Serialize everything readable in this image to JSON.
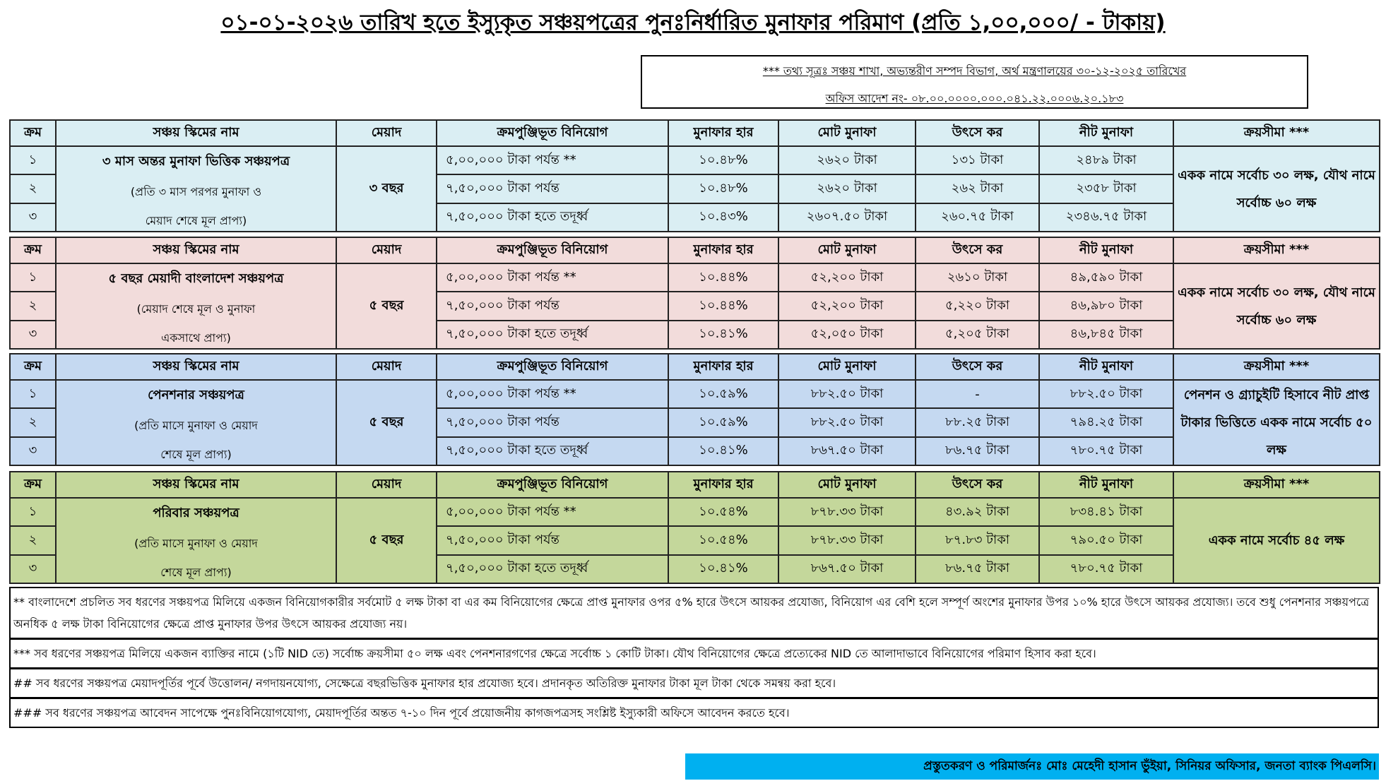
{
  "title": "০১-০১-২০২৬ তারিখ হতে ইস্যুকৃত সঞ্চয়পত্রের পুনঃনির্ধারিত মুনাফার পরিমাণ (প্রতি ১,০০,০০০/ - টাকায়)",
  "source": {
    "line1": "*** তথ্য সূত্রঃ সঞ্চয় শাখা, অভ্যন্তরীণ সম্পদ বিভাগ, অর্থ মন্ত্রণালয়ের ৩০-১২-২০২৫ তারিখের",
    "line2": "অফিস আদেশ নং- ০৮.০০.০০০০.০০০.০৪১.২২.০০০৬.২০.১৮৩"
  },
  "headers": [
    "ক্রম",
    "সঞ্চয় স্কিমের নাম",
    "মেয়াদ",
    "ক্রমপুঞ্জিভূত বিনিয়োগ",
    "মুনাফার হার",
    "মোট মুনাফা",
    "উৎসে কর",
    "নীট মুনাফা",
    "ক্রয়সীমা ***"
  ],
  "schemes": [
    {
      "color": "#DAEEF3",
      "name": [
        "৩ মাস অন্তর মুনাফা ভিত্তিক সঞ্চয়পত্র",
        "(প্রতি ৩ মাস পরপর মুনাফা ও",
        "মেয়াদ শেষে মূল প্রাপ্য)"
      ],
      "term": "৩ বছর",
      "limit": "একক নামে সর্বোচ ৩০ লক্ষ, যৌথ নামে সর্বোচ্চ ৬০ লক্ষ",
      "rows": [
        [
          "১",
          "৫,০০,০০০ টাকা পর্যন্ত **",
          "১০.৪৮%",
          "২৬২০ টাকা",
          "১৩১ টাকা",
          "২৪৮৯ টাকা"
        ],
        [
          "২",
          "৭,৫০,০০০ টাকা পর্যন্ত",
          "১০.৪৮%",
          "২৬২০ টাকা",
          "২৬২ টাকা",
          "২৩৫৮ টাকা"
        ],
        [
          "৩",
          "৭,৫০,০০০ টাকা হতে তদূর্ধ্ব",
          "১০.৪৩%",
          "২৬০৭.৫০ টাকা",
          "২৬০.৭৫ টাকা",
          "২৩৪৬.৭৫ টাকা"
        ]
      ]
    },
    {
      "color": "#F2DCDB",
      "name": [
        "৫ বছর মেয়াদী বাংলাদেশ সঞ্চয়পত্র",
        "(মেয়াদ শেষে মূল ও মুনাফা",
        "একসাথে প্রাপ্য)"
      ],
      "term": "৫ বছর",
      "limit": "একক নামে সর্বোচ ৩০ লক্ষ, যৌথ নামে সর্বোচ্চ ৬০ লক্ষ",
      "rows": [
        [
          "১",
          "৫,০০,০০০ টাকা পর্যন্ত **",
          "১০.৪৪%",
          "৫২,২০০ টাকা",
          "২৬১০ টাকা",
          "৪৯,৫৯০ টাকা"
        ],
        [
          "২",
          "৭,৫০,০০০ টাকা পর্যন্ত",
          "১০.৪৪%",
          "৫২,২০০ টাকা",
          "৫,২২০ টাকা",
          "৪৬,৯৮০ টাকা"
        ],
        [
          "৩",
          "৭,৫০,০০০ টাকা হতে তদূর্ধ্ব",
          "১০.৪১%",
          "৫২,০৫০ টাকা",
          "৫,২০৫ টাকা",
          "৪৬,৮৪৫ টাকা"
        ]
      ]
    },
    {
      "color": "#C5D9F1",
      "name": [
        "পেনশনার সঞ্চয়পত্র",
        "(প্রতি মাসে মুনাফা ও মেয়াদ",
        "শেষে মূল প্রাপ্য)"
      ],
      "term": "৫ বছর",
      "limit": "পেনশন ও গ্র্যাচুইটি হিসাবে নীট প্রাপ্ত টাকার ভিত্তিতে একক নামে সর্বোচ ৫০ লক্ষ",
      "rows": [
        [
          "১",
          "৫,০০,০০০ টাকা পর্যন্ত **",
          "১০.৫৯%",
          "৮৮২.৫০ টাকা",
          "-",
          "৮৮২.৫০ টাকা"
        ],
        [
          "২",
          "৭,৫০,০০০ টাকা পর্যন্ত",
          "১০.৫৯%",
          "৮৮২.৫০ টাকা",
          "৮৮.২৫ টাকা",
          "৭৯৪.২৫ টাকা"
        ],
        [
          "৩",
          "৭,৫০,০০০ টাকা হতে তদূর্ধ্ব",
          "১০.৪১%",
          "৮৬৭.৫০ টাকা",
          "৮৬.৭৫ টাকা",
          "৭৮০.৭৫ টাকা"
        ]
      ]
    },
    {
      "color": "#C4D79B",
      "name": [
        "পরিবার সঞ্চয়পত্র",
        "(প্রতি মাসে মুনাফা ও মেয়াদ",
        "শেষে মূল প্রাপ্য)"
      ],
      "term": "৫ বছর",
      "limit": "একক নামে সর্বোচ ৪৫ লক্ষ",
      "rows": [
        [
          "১",
          "৫,০০,০০০ টাকা পর্যন্ত **",
          "১০.৫৪%",
          "৮৭৮.৩৩ টাকা",
          "৪৩.৯২ টাকা",
          "৮৩৪.৪১ টাকা"
        ],
        [
          "২",
          "৭,৫০,০০০ টাকা পর্যন্ত",
          "১০.৫৪%",
          "৮৭৮.৩৩ টাকা",
          "৮৭.৮৩ টাকা",
          "৭৯০.৫০ টাকা"
        ],
        [
          "৩",
          "৭,৫০,০০০ টাকা হতে তদূর্ধ্ব",
          "১০.৪১%",
          "৮৬৭.৫০ টাকা",
          "৮৬.৭৫ টাকা",
          "৭৮০.৭৫ টাকা"
        ]
      ]
    }
  ],
  "notes": [
    "** বাংলাদেশে প্রচলিত সব ধরণের সঞ্চয়পত্র মিলিয়ে একজন বিনিয়োগকারীর সর্বমোট ৫ লক্ষ টাকা বা এর কম বিনিয়োগের ক্ষেত্রে প্রাপ্ত মুনাফার ওপর ৫% হারে উৎসে আয়কর প্রযোজ্য, বিনিয়োগ এর বেশি হলে সম্পূর্ণ অংশের মুনাফার উপর ১০% হারে উৎসে আয়কর প্রযোজ্য। তবে শুধু পেনশনার সঞ্চয়পত্রে অনধিক ৫ লক্ষ টাকা বিনিয়োগের ক্ষেত্রে প্রাপ্ত মুনাফার উপর উৎসে আয়কর প্রযোজ্য নয়।",
    "*** সব ধরণের সঞ্চয়পত্র মিলিয়ে একজন ব্যাক্তির নামে (১টি NID তে) সর্বোচ্চ ক্রয়সীমা ৫০ লক্ষ এবং পেনশনারগণের ক্ষেত্রে সর্বোচ্চ ১ কোটি টাকা। যৌথ বিনিয়োগের ক্ষেত্রে প্রত্যেকের NID তে আলাদাভাবে বিনিয়োগের পরিমাণ হিসাব করা হবে।",
    "## সব ধরণের সঞ্চয়পত্র মেয়াদপূর্তির পূর্বে উত্তোলন/ নগদায়নযোগ্য, সেক্ষেত্রে বছরভিত্তিক মুনাফার হার প্রযোজ্য হবে। প্রদানকৃত অতিরিক্ত মুনাফার টাকা মূল টাকা থেকে সমন্বয় করা হবে।",
    "### সব ধরণের সঞ্চয়পত্র আবেদন সাপেক্ষে পুনঃবিনিয়োগযোগ্য, মেয়াদপূর্তির অন্তত ৭-১০ দিন পূর্বে প্রয়োজনীয় কাগজপত্রসহ সংশ্লিষ্ট ইস্যুকারী অফিসে আবেদন করতে হবে।"
  ],
  "credit": "প্রস্তুতকরণ ও পরিমার্জনঃ মোঃ মেহেদী হাসান ভুঁইয়া, সিনিয়র অফিসার, জনতা ব্যাংক পিএলসি।",
  "banner_color": "#00B0F0"
}
